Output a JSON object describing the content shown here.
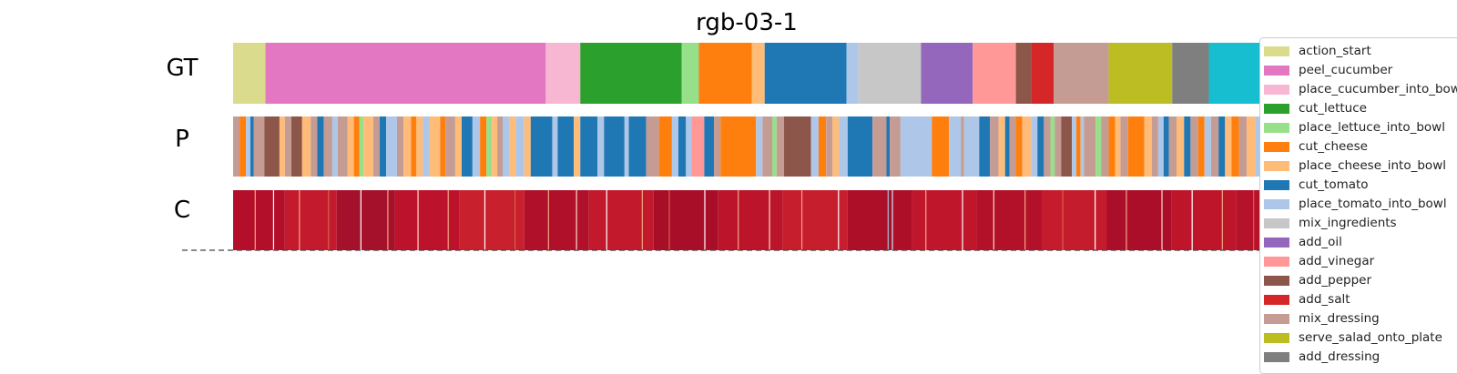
{
  "chart_data": {
    "type": "heatmap",
    "title": "rgb-03-1",
    "rows": [
      "GT",
      "P",
      "C"
    ],
    "colors": {
      "action_start": "#dbdb8d",
      "peel_cucumber": "#e377c2",
      "place_cucumber_into_bowl": "#f7b6d2",
      "cut_lettuce": "#2ca02c",
      "place_lettuce_into_bowl": "#98df8a",
      "cut_cheese": "#ff7f0e",
      "place_cheese_into_bowl": "#ffbb78",
      "cut_tomato": "#1f77b4",
      "place_tomato_into_bowl": "#aec7e8",
      "mix_ingredients": "#c7c7c7",
      "add_oil": "#9467bd",
      "add_vinegar": "#ff9896",
      "add_pepper": "#8c564b",
      "add_salt": "#d62728",
      "mix_dressing": "#c49c94",
      "serve_salad_onto_plate": "#bcbd22",
      "add_dressing": "#7f7f7f",
      "action_end": "#17becf"
    },
    "legend": [
      "action_start",
      "peel_cucumber",
      "place_cucumber_into_bowl",
      "cut_lettuce",
      "place_lettuce_into_bowl",
      "cut_cheese",
      "place_cheese_into_bowl",
      "cut_tomato",
      "place_tomato_into_bowl",
      "mix_ingredients",
      "add_oil",
      "add_vinegar",
      "add_pepper",
      "add_salt",
      "mix_dressing",
      "serve_salad_onto_plate",
      "add_dressing"
    ],
    "legend_placement": "right",
    "gt_segments": [
      {
        "action": "action_start",
        "start": 0.0,
        "end": 0.03
      },
      {
        "action": "peel_cucumber",
        "start": 0.03,
        "end": 0.29
      },
      {
        "action": "place_cucumber_into_bowl",
        "start": 0.29,
        "end": 0.322
      },
      {
        "action": "cut_lettuce",
        "start": 0.322,
        "end": 0.416
      },
      {
        "action": "place_lettuce_into_bowl",
        "start": 0.416,
        "end": 0.432
      },
      {
        "action": "cut_cheese",
        "start": 0.432,
        "end": 0.481
      },
      {
        "action": "place_cheese_into_bowl",
        "start": 0.481,
        "end": 0.493
      },
      {
        "action": "cut_tomato",
        "start": 0.493,
        "end": 0.569
      },
      {
        "action": "place_tomato_into_bowl",
        "start": 0.569,
        "end": 0.58
      },
      {
        "action": "mix_ingredients",
        "start": 0.58,
        "end": 0.638
      },
      {
        "action": "add_oil",
        "start": 0.638,
        "end": 0.686
      },
      {
        "action": "add_vinegar",
        "start": 0.686,
        "end": 0.726
      },
      {
        "action": "add_pepper",
        "start": 0.726,
        "end": 0.74
      },
      {
        "action": "add_salt",
        "start": 0.74,
        "end": 0.761
      },
      {
        "action": "mix_dressing",
        "start": 0.761,
        "end": 0.812
      },
      {
        "action": "serve_salad_onto_plate",
        "start": 0.812,
        "end": 0.871
      },
      {
        "action": "add_dressing",
        "start": 0.871,
        "end": 0.905
      },
      {
        "action": "action_end",
        "start": 0.905,
        "end": 1.0
      }
    ],
    "p_segments": [
      {
        "action": "mix_dressing",
        "start": 0.0,
        "end": 0.006
      },
      {
        "action": "cut_cheese",
        "start": 0.006,
        "end": 0.012
      },
      {
        "action": "place_tomato_into_bowl",
        "start": 0.012,
        "end": 0.016
      },
      {
        "action": "cut_tomato",
        "start": 0.016,
        "end": 0.019
      },
      {
        "action": "mix_dressing",
        "start": 0.019,
        "end": 0.029
      },
      {
        "action": "add_pepper",
        "start": 0.029,
        "end": 0.043
      },
      {
        "action": "place_cheese_into_bowl",
        "start": 0.043,
        "end": 0.048
      },
      {
        "action": "mix_dressing",
        "start": 0.048,
        "end": 0.054
      },
      {
        "action": "add_pepper",
        "start": 0.054,
        "end": 0.064
      },
      {
        "action": "place_cheese_into_bowl",
        "start": 0.064,
        "end": 0.072
      },
      {
        "action": "mix_dressing",
        "start": 0.072,
        "end": 0.078
      },
      {
        "action": "cut_tomato",
        "start": 0.078,
        "end": 0.084
      },
      {
        "action": "mix_dressing",
        "start": 0.084,
        "end": 0.092
      },
      {
        "action": "place_tomato_into_bowl",
        "start": 0.092,
        "end": 0.097
      },
      {
        "action": "mix_dressing",
        "start": 0.097,
        "end": 0.106
      },
      {
        "action": "place_cheese_into_bowl",
        "start": 0.106,
        "end": 0.112
      },
      {
        "action": "cut_cheese",
        "start": 0.112,
        "end": 0.117
      },
      {
        "action": "place_lettuce_into_bowl",
        "start": 0.117,
        "end": 0.121
      },
      {
        "action": "place_cheese_into_bowl",
        "start": 0.121,
        "end": 0.13
      },
      {
        "action": "mix_dressing",
        "start": 0.13,
        "end": 0.136
      },
      {
        "action": "cut_tomato",
        "start": 0.136,
        "end": 0.142
      },
      {
        "action": "place_tomato_into_bowl",
        "start": 0.142,
        "end": 0.152
      },
      {
        "action": "mix_dressing",
        "start": 0.152,
        "end": 0.158
      },
      {
        "action": "place_cheese_into_bowl",
        "start": 0.158,
        "end": 0.165
      },
      {
        "action": "cut_cheese",
        "start": 0.165,
        "end": 0.17
      },
      {
        "action": "place_cheese_into_bowl",
        "start": 0.17,
        "end": 0.176
      },
      {
        "action": "place_tomato_into_bowl",
        "start": 0.176,
        "end": 0.182
      },
      {
        "action": "place_cheese_into_bowl",
        "start": 0.182,
        "end": 0.192
      },
      {
        "action": "cut_cheese",
        "start": 0.192,
        "end": 0.197
      },
      {
        "action": "mix_dressing",
        "start": 0.197,
        "end": 0.206
      },
      {
        "action": "place_cheese_into_bowl",
        "start": 0.206,
        "end": 0.212
      },
      {
        "action": "cut_tomato",
        "start": 0.212,
        "end": 0.222
      },
      {
        "action": "place_tomato_into_bowl",
        "start": 0.222,
        "end": 0.229
      },
      {
        "action": "cut_cheese",
        "start": 0.229,
        "end": 0.235
      },
      {
        "action": "place_lettuce_into_bowl",
        "start": 0.235,
        "end": 0.24
      },
      {
        "action": "place_cheese_into_bowl",
        "start": 0.24,
        "end": 0.245
      },
      {
        "action": "mix_dressing",
        "start": 0.245,
        "end": 0.25
      },
      {
        "action": "place_tomato_into_bowl",
        "start": 0.25,
        "end": 0.256
      },
      {
        "action": "place_cheese_into_bowl",
        "start": 0.256,
        "end": 0.262
      },
      {
        "action": "place_tomato_into_bowl",
        "start": 0.262,
        "end": 0.27
      },
      {
        "action": "place_cheese_into_bowl",
        "start": 0.27,
        "end": 0.276
      },
      {
        "action": "cut_tomato",
        "start": 0.276,
        "end": 0.296
      },
      {
        "action": "place_tomato_into_bowl",
        "start": 0.296,
        "end": 0.301
      },
      {
        "action": "cut_tomato",
        "start": 0.301,
        "end": 0.316
      },
      {
        "action": "place_cheese_into_bowl",
        "start": 0.316,
        "end": 0.322
      },
      {
        "action": "cut_tomato",
        "start": 0.322,
        "end": 0.338
      },
      {
        "action": "place_tomato_into_bowl",
        "start": 0.338,
        "end": 0.344
      },
      {
        "action": "cut_tomato",
        "start": 0.344,
        "end": 0.363
      },
      {
        "action": "place_tomato_into_bowl",
        "start": 0.363,
        "end": 0.367
      },
      {
        "action": "cut_tomato",
        "start": 0.367,
        "end": 0.383
      },
      {
        "action": "mix_dressing",
        "start": 0.383,
        "end": 0.395
      },
      {
        "action": "cut_cheese",
        "start": 0.395,
        "end": 0.407
      },
      {
        "action": "place_tomato_into_bowl",
        "start": 0.407,
        "end": 0.413
      },
      {
        "action": "cut_tomato",
        "start": 0.413,
        "end": 0.42
      },
      {
        "action": "place_tomato_into_bowl",
        "start": 0.42,
        "end": 0.425
      },
      {
        "action": "add_vinegar",
        "start": 0.425,
        "end": 0.437
      },
      {
        "action": "cut_tomato",
        "start": 0.437,
        "end": 0.446
      },
      {
        "action": "mix_dressing",
        "start": 0.446,
        "end": 0.452
      },
      {
        "action": "cut_cheese",
        "start": 0.452,
        "end": 0.485
      },
      {
        "action": "place_tomato_into_bowl",
        "start": 0.485,
        "end": 0.491
      },
      {
        "action": "mix_dressing",
        "start": 0.491,
        "end": 0.5
      },
      {
        "action": "place_lettuce_into_bowl",
        "start": 0.5,
        "end": 0.504
      },
      {
        "action": "mix_dressing",
        "start": 0.504,
        "end": 0.511
      },
      {
        "action": "add_pepper",
        "start": 0.511,
        "end": 0.536
      },
      {
        "action": "place_tomato_into_bowl",
        "start": 0.536,
        "end": 0.543
      },
      {
        "action": "cut_cheese",
        "start": 0.543,
        "end": 0.55
      },
      {
        "action": "mix_dressing",
        "start": 0.55,
        "end": 0.556
      },
      {
        "action": "place_cheese_into_bowl",
        "start": 0.556,
        "end": 0.562
      },
      {
        "action": "place_tomato_into_bowl",
        "start": 0.562,
        "end": 0.57
      },
      {
        "action": "cut_tomato",
        "start": 0.57,
        "end": 0.593
      },
      {
        "action": "mix_dressing",
        "start": 0.593,
        "end": 0.606
      },
      {
        "action": "cut_tomato",
        "start": 0.606,
        "end": 0.609
      },
      {
        "action": "mix_dressing",
        "start": 0.609,
        "end": 0.619
      },
      {
        "action": "place_tomato_into_bowl",
        "start": 0.619,
        "end": 0.648
      },
      {
        "action": "cut_cheese",
        "start": 0.648,
        "end": 0.664
      },
      {
        "action": "place_tomato_into_bowl",
        "start": 0.664,
        "end": 0.675
      },
      {
        "action": "mix_dressing",
        "start": 0.675,
        "end": 0.678
      },
      {
        "action": "place_tomato_into_bowl",
        "start": 0.678,
        "end": 0.692
      },
      {
        "action": "cut_tomato",
        "start": 0.692,
        "end": 0.702
      },
      {
        "action": "mix_dressing",
        "start": 0.702,
        "end": 0.71
      },
      {
        "action": "place_cheese_into_bowl",
        "start": 0.71,
        "end": 0.716
      },
      {
        "action": "cut_tomato",
        "start": 0.716,
        "end": 0.72
      },
      {
        "action": "mix_dressing",
        "start": 0.72,
        "end": 0.726
      },
      {
        "action": "cut_cheese",
        "start": 0.726,
        "end": 0.732
      },
      {
        "action": "place_cheese_into_bowl",
        "start": 0.732,
        "end": 0.74
      },
      {
        "action": "place_tomato_into_bowl",
        "start": 0.74,
        "end": 0.746
      },
      {
        "action": "cut_tomato",
        "start": 0.746,
        "end": 0.752
      },
      {
        "action": "mix_dressing",
        "start": 0.752,
        "end": 0.758
      },
      {
        "action": "place_lettuce_into_bowl",
        "start": 0.758,
        "end": 0.762
      },
      {
        "action": "mix_dressing",
        "start": 0.762,
        "end": 0.768
      },
      {
        "action": "add_pepper",
        "start": 0.768,
        "end": 0.778
      },
      {
        "action": "place_tomato_into_bowl",
        "start": 0.778,
        "end": 0.782
      },
      {
        "action": "cut_cheese",
        "start": 0.782,
        "end": 0.786
      },
      {
        "action": "place_tomato_into_bowl",
        "start": 0.786,
        "end": 0.789
      },
      {
        "action": "mix_dressing",
        "start": 0.789,
        "end": 0.8
      },
      {
        "action": "place_lettuce_into_bowl",
        "start": 0.8,
        "end": 0.805
      },
      {
        "action": "mix_dressing",
        "start": 0.805,
        "end": 0.812
      },
      {
        "action": "cut_cheese",
        "start": 0.812,
        "end": 0.818
      },
      {
        "action": "place_cheese_into_bowl",
        "start": 0.818,
        "end": 0.823
      },
      {
        "action": "mix_dressing",
        "start": 0.823,
        "end": 0.83
      },
      {
        "action": "cut_cheese",
        "start": 0.83,
        "end": 0.845
      },
      {
        "action": "place_cheese_into_bowl",
        "start": 0.845,
        "end": 0.852
      },
      {
        "action": "mix_dressing",
        "start": 0.852,
        "end": 0.858
      },
      {
        "action": "place_tomato_into_bowl",
        "start": 0.858,
        "end": 0.863
      },
      {
        "action": "cut_tomato",
        "start": 0.863,
        "end": 0.868
      },
      {
        "action": "mix_dressing",
        "start": 0.868,
        "end": 0.875
      },
      {
        "action": "place_cheese_into_bowl",
        "start": 0.875,
        "end": 0.882
      },
      {
        "action": "cut_tomato",
        "start": 0.882,
        "end": 0.888
      },
      {
        "action": "mix_dressing",
        "start": 0.888,
        "end": 0.895
      },
      {
        "action": "cut_cheese",
        "start": 0.895,
        "end": 0.901
      },
      {
        "action": "place_tomato_into_bowl",
        "start": 0.901,
        "end": 0.907
      },
      {
        "action": "mix_dressing",
        "start": 0.907,
        "end": 0.914
      },
      {
        "action": "cut_tomato",
        "start": 0.914,
        "end": 0.92
      },
      {
        "action": "place_cheese_into_bowl",
        "start": 0.92,
        "end": 0.926
      },
      {
        "action": "cut_cheese",
        "start": 0.926,
        "end": 0.933
      },
      {
        "action": "mix_dressing",
        "start": 0.933,
        "end": 0.94
      },
      {
        "action": "place_cheese_into_bowl",
        "start": 0.94,
        "end": 0.948
      },
      {
        "action": "place_tomato_into_bowl",
        "start": 0.948,
        "end": 0.955
      },
      {
        "action": "mix_dressing",
        "start": 0.955,
        "end": 0.962
      },
      {
        "action": "cut_cheese",
        "start": 0.962,
        "end": 0.97
      },
      {
        "action": "place_cheese_into_bowl",
        "start": 0.97,
        "end": 0.978
      },
      {
        "action": "mix_dressing",
        "start": 0.978,
        "end": 0.988
      },
      {
        "action": "cut_tomato",
        "start": 0.988,
        "end": 1.0
      }
    ],
    "c_segments": [
      {
        "color": "#b40f2a",
        "start": 0.0,
        "end": 0.048
      },
      {
        "color": "#c41a2d",
        "start": 0.048,
        "end": 0.096
      },
      {
        "color": "#a5102a",
        "start": 0.096,
        "end": 0.15
      },
      {
        "color": "#bd122b",
        "start": 0.15,
        "end": 0.21
      },
      {
        "color": "#c8202c",
        "start": 0.21,
        "end": 0.27
      },
      {
        "color": "#b0102a",
        "start": 0.27,
        "end": 0.33
      },
      {
        "color": "#c2192c",
        "start": 0.33,
        "end": 0.39
      },
      {
        "color": "#a90e29",
        "start": 0.39,
        "end": 0.45
      },
      {
        "color": "#bb142b",
        "start": 0.45,
        "end": 0.51
      },
      {
        "color": "#c71e2d",
        "start": 0.51,
        "end": 0.57
      },
      {
        "color": "#ad0f29",
        "start": 0.57,
        "end": 0.63
      },
      {
        "color": "#c0162c",
        "start": 0.63,
        "end": 0.69
      },
      {
        "color": "#b3112a",
        "start": 0.69,
        "end": 0.75
      },
      {
        "color": "#c51c2d",
        "start": 0.75,
        "end": 0.81
      },
      {
        "color": "#ab0e29",
        "start": 0.81,
        "end": 0.87
      },
      {
        "color": "#be152b",
        "start": 0.87,
        "end": 0.93
      },
      {
        "color": "#b6122a",
        "start": 0.93,
        "end": 1.0
      }
    ],
    "c_stripes": [
      {
        "color": "#f4a582",
        "pos": 0.02
      },
      {
        "color": "#ffffff",
        "pos": 0.037
      },
      {
        "color": "#f4a582",
        "pos": 0.061
      },
      {
        "color": "#d6604d",
        "pos": 0.088
      },
      {
        "color": "#ffffff",
        "pos": 0.118
      },
      {
        "color": "#f4a582",
        "pos": 0.143
      },
      {
        "color": "#fddbc7",
        "pos": 0.171
      },
      {
        "color": "#f4a582",
        "pos": 0.199
      },
      {
        "color": "#ffffff",
        "pos": 0.233
      },
      {
        "color": "#d6604d",
        "pos": 0.261
      },
      {
        "color": "#f4a582",
        "pos": 0.292
      },
      {
        "color": "#fddbc7",
        "pos": 0.318
      },
      {
        "color": "#ffffff",
        "pos": 0.346
      },
      {
        "color": "#f4a582",
        "pos": 0.379
      },
      {
        "color": "#d6604d",
        "pos": 0.404
      },
      {
        "color": "#ffffff",
        "pos": 0.437
      },
      {
        "color": "#f4a582",
        "pos": 0.468
      },
      {
        "color": "#fddbc7",
        "pos": 0.497
      },
      {
        "color": "#f4a582",
        "pos": 0.527
      },
      {
        "color": "#ffffff",
        "pos": 0.561
      },
      {
        "color": "#92c5de",
        "pos": 0.607
      },
      {
        "color": "#d1e5f0",
        "pos": 0.611
      },
      {
        "color": "#f4a582",
        "pos": 0.642
      },
      {
        "color": "#ffffff",
        "pos": 0.676
      },
      {
        "color": "#fddbc7",
        "pos": 0.705
      },
      {
        "color": "#f4a582",
        "pos": 0.734
      },
      {
        "color": "#d6604d",
        "pos": 0.769
      },
      {
        "color": "#ffffff",
        "pos": 0.799
      },
      {
        "color": "#f4a582",
        "pos": 0.828
      },
      {
        "color": "#fddbc7",
        "pos": 0.861
      },
      {
        "color": "#ffffff",
        "pos": 0.889
      },
      {
        "color": "#f4a582",
        "pos": 0.917
      },
      {
        "color": "#d6604d",
        "pos": 0.946
      },
      {
        "color": "#ffffff",
        "pos": 0.972
      },
      {
        "color": "#f4a582",
        "pos": 0.991
      }
    ]
  }
}
